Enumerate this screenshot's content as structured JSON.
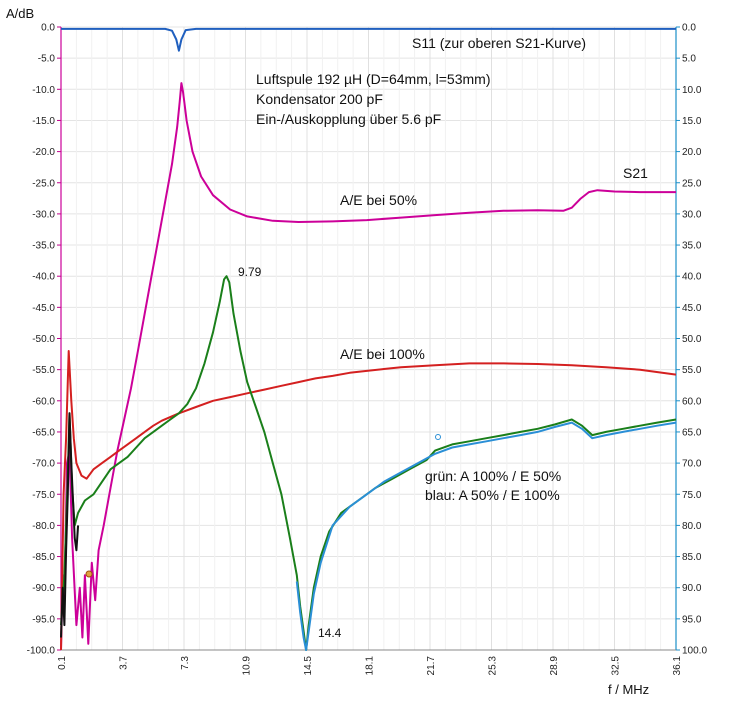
{
  "chart_data": {
    "type": "line",
    "ylabel": "A/dB",
    "xlabel": "f / MHz",
    "xlim": [
      0.1,
      36.1
    ],
    "ylim": [
      -100,
      0
    ],
    "grid": true,
    "x_ticks": [
      "0.1",
      "3.7",
      "7.3",
      "10.9",
      "14.5",
      "18.1",
      "21.7",
      "25.3",
      "28.9",
      "32.5",
      "36.1"
    ],
    "y_ticks_left": [
      "0.0",
      "-5.0",
      "-10.0",
      "-15.0",
      "-20.0",
      "-25.0",
      "-30.0",
      "-35.0",
      "-40.0",
      "-45.0",
      "-50.0",
      "-55.0",
      "-60.0",
      "-65.0",
      "-70.0",
      "-75.0",
      "-80.0",
      "-85.0",
      "-90.0",
      "-95.0",
      "-100.0"
    ],
    "y_ticks_right": [
      "0.0",
      "5.0",
      "10.0",
      "15.0",
      "20.0",
      "25.0",
      "30.0",
      "35.0",
      "40.0",
      "45.0",
      "50.0",
      "55.0",
      "60.0",
      "65.0",
      "70.0",
      "75.0",
      "80.0",
      "85.0",
      "90.0",
      "95.0",
      "100.0"
    ],
    "annotations": {
      "s11": "S11 (zur oberen S21-Kurve)",
      "coil_line1": "Luftspule 192 µH (D=64mm, l=53mm)",
      "coil_line2": "Kondensator 200 pF",
      "coil_line3": "Ein-/Auskopplung über 5.6 pF",
      "s21": "S21",
      "ae50": "A/E bei 50%",
      "ae100": "A/E bei 100%",
      "peak": "9.79",
      "notch": "14.4",
      "legend_green": "grün: A 100% / E 50%",
      "legend_blue": "blau: A 50% / E 100%"
    },
    "series": [
      {
        "color": "#1f5fbf",
        "points": [
          [
            0.1,
            -0.3
          ],
          [
            6.2,
            -0.3
          ],
          [
            6.6,
            -0.6
          ],
          [
            6.85,
            -2.0
          ],
          [
            7.0,
            -3.8
          ],
          [
            7.15,
            -2.0
          ],
          [
            7.4,
            -0.5
          ],
          [
            8.0,
            -0.3
          ],
          [
            36.1,
            -0.3
          ]
        ]
      },
      {
        "color": "#cc0099",
        "points": [
          [
            0.1,
            -100
          ],
          [
            0.2,
            -88
          ],
          [
            0.3,
            -92
          ],
          [
            0.45,
            -70
          ],
          [
            0.6,
            -68
          ],
          [
            0.75,
            -82
          ],
          [
            1.0,
            -96
          ],
          [
            1.2,
            -90
          ],
          [
            1.35,
            -98
          ],
          [
            1.5,
            -88
          ],
          [
            1.7,
            -99
          ],
          [
            1.9,
            -86
          ],
          [
            2.1,
            -92
          ],
          [
            2.3,
            -84
          ],
          [
            2.6,
            -80
          ],
          [
            3.0,
            -74
          ],
          [
            3.4,
            -68
          ],
          [
            3.8,
            -63
          ],
          [
            4.2,
            -58
          ],
          [
            4.6,
            -52
          ],
          [
            5.0,
            -46
          ],
          [
            5.4,
            -40
          ],
          [
            5.8,
            -34
          ],
          [
            6.2,
            -28
          ],
          [
            6.6,
            -22
          ],
          [
            6.9,
            -16
          ],
          [
            7.05,
            -12
          ],
          [
            7.15,
            -9.0
          ],
          [
            7.25,
            -10.5
          ],
          [
            7.45,
            -15
          ],
          [
            7.8,
            -20
          ],
          [
            8.3,
            -24
          ],
          [
            9.0,
            -27
          ],
          [
            10.0,
            -29.3
          ],
          [
            11.0,
            -30.4
          ],
          [
            12.5,
            -31.1
          ],
          [
            14.0,
            -31.3
          ],
          [
            16.0,
            -31.2
          ],
          [
            18.0,
            -31.0
          ],
          [
            20.0,
            -30.6
          ],
          [
            22.0,
            -30.2
          ],
          [
            24.0,
            -29.8
          ],
          [
            26.0,
            -29.5
          ],
          [
            28.0,
            -29.4
          ],
          [
            29.5,
            -29.5
          ],
          [
            30.0,
            -29.0
          ],
          [
            30.5,
            -27.6
          ],
          [
            31.0,
            -26.5
          ],
          [
            31.5,
            -26.2
          ],
          [
            32.5,
            -26.4
          ],
          [
            34.0,
            -26.5
          ],
          [
            36.1,
            -26.5
          ]
        ]
      },
      {
        "color": "#d42020",
        "points": [
          [
            0.1,
            -100
          ],
          [
            0.25,
            -75
          ],
          [
            0.4,
            -66
          ],
          [
            0.55,
            -52
          ],
          [
            0.7,
            -60
          ],
          [
            0.85,
            -66
          ],
          [
            1.0,
            -70
          ],
          [
            1.3,
            -72
          ],
          [
            1.6,
            -72.5
          ],
          [
            2.0,
            -71
          ],
          [
            2.5,
            -70
          ],
          [
            3.0,
            -69
          ],
          [
            3.5,
            -68
          ],
          [
            4.0,
            -67
          ],
          [
            4.5,
            -66
          ],
          [
            5.0,
            -65
          ],
          [
            5.5,
            -64
          ],
          [
            6.0,
            -63.2
          ],
          [
            7.0,
            -62
          ],
          [
            8.0,
            -61
          ],
          [
            9.0,
            -60
          ],
          [
            10.0,
            -59.4
          ],
          [
            11.0,
            -58.8
          ],
          [
            12.0,
            -58.2
          ],
          [
            13.0,
            -57.6
          ],
          [
            14.0,
            -57.0
          ],
          [
            15.0,
            -56.4
          ],
          [
            16.0,
            -56.0
          ],
          [
            17.0,
            -55.5
          ],
          [
            18.0,
            -55.2
          ],
          [
            19.0,
            -54.9
          ],
          [
            20.0,
            -54.6
          ],
          [
            22.0,
            -54.3
          ],
          [
            24.0,
            -54.0
          ],
          [
            26.0,
            -54.0
          ],
          [
            28.0,
            -54.1
          ],
          [
            30.0,
            -54.3
          ],
          [
            32.0,
            -54.6
          ],
          [
            34.0,
            -55.0
          ],
          [
            36.1,
            -55.8
          ]
        ]
      },
      {
        "color": "#1a7f1a",
        "points": [
          [
            0.1,
            -96
          ],
          [
            0.3,
            -88
          ],
          [
            0.5,
            -72
          ],
          [
            0.6,
            -62
          ],
          [
            0.75,
            -74
          ],
          [
            0.9,
            -80
          ],
          [
            1.1,
            -78
          ],
          [
            1.5,
            -76
          ],
          [
            2.0,
            -75
          ],
          [
            2.5,
            -73
          ],
          [
            3.0,
            -71
          ],
          [
            3.5,
            -70
          ],
          [
            4.0,
            -69
          ],
          [
            4.5,
            -67.5
          ],
          [
            5.0,
            -66
          ],
          [
            5.5,
            -65
          ],
          [
            6.0,
            -64
          ],
          [
            6.5,
            -63
          ],
          [
            7.0,
            -62
          ],
          [
            7.5,
            -60.5
          ],
          [
            8.0,
            -58
          ],
          [
            8.5,
            -54
          ],
          [
            9.0,
            -49
          ],
          [
            9.4,
            -44
          ],
          [
            9.65,
            -40.5
          ],
          [
            9.79,
            -40
          ],
          [
            9.95,
            -41
          ],
          [
            10.2,
            -46
          ],
          [
            10.6,
            -52
          ],
          [
            11.0,
            -57
          ],
          [
            11.5,
            -61
          ],
          [
            12.0,
            -65
          ],
          [
            12.5,
            -70
          ],
          [
            13.0,
            -75
          ],
          [
            13.5,
            -82
          ],
          [
            13.9,
            -88
          ],
          [
            14.1,
            -93
          ],
          [
            14.3,
            -97
          ],
          [
            14.45,
            -100
          ],
          [
            14.6,
            -96
          ],
          [
            14.9,
            -90
          ],
          [
            15.3,
            -85
          ],
          [
            15.8,
            -81
          ],
          [
            16.5,
            -78
          ],
          [
            17.5,
            -76
          ],
          [
            18.5,
            -74
          ],
          [
            19.5,
            -72.5
          ],
          [
            20.5,
            -71
          ],
          [
            21.5,
            -69.5
          ],
          [
            22.0,
            -68
          ],
          [
            23.0,
            -67
          ],
          [
            24.0,
            -66.5
          ],
          [
            25.0,
            -66
          ],
          [
            26.0,
            -65.5
          ],
          [
            27.0,
            -65
          ],
          [
            28.0,
            -64.5
          ],
          [
            29.0,
            -63.8
          ],
          [
            30.0,
            -63
          ],
          [
            30.6,
            -64
          ],
          [
            31.2,
            -65.5
          ],
          [
            32.0,
            -65
          ],
          [
            33.0,
            -64.5
          ],
          [
            34.0,
            -64
          ],
          [
            35.0,
            -63.5
          ],
          [
            36.1,
            -63
          ]
        ]
      },
      {
        "color": "#2a8fd6",
        "points": [
          [
            13.9,
            -89
          ],
          [
            14.1,
            -94
          ],
          [
            14.3,
            -98
          ],
          [
            14.45,
            -100
          ],
          [
            14.6,
            -97
          ],
          [
            14.9,
            -91
          ],
          [
            15.3,
            -86
          ],
          [
            16.0,
            -80
          ],
          [
            17.0,
            -77
          ],
          [
            18.0,
            -75
          ],
          [
            19.0,
            -73
          ],
          [
            20.0,
            -71.5
          ],
          [
            21.0,
            -70
          ],
          [
            22.0,
            -68.5
          ],
          [
            23.0,
            -67.5
          ],
          [
            24.0,
            -67
          ],
          [
            25.0,
            -66.5
          ],
          [
            26.0,
            -66
          ],
          [
            27.0,
            -65.5
          ],
          [
            28.0,
            -65
          ],
          [
            29.0,
            -64.2
          ],
          [
            30.0,
            -63.5
          ],
          [
            30.6,
            -64.5
          ],
          [
            31.2,
            -66
          ],
          [
            32.0,
            -65.5
          ],
          [
            33.0,
            -65
          ],
          [
            34.0,
            -64.5
          ],
          [
            35.0,
            -64
          ],
          [
            36.1,
            -63.5
          ]
        ]
      },
      {
        "color": "#111111",
        "points": [
          [
            0.1,
            -98
          ],
          [
            0.2,
            -90
          ],
          [
            0.3,
            -96
          ],
          [
            0.4,
            -84
          ],
          [
            0.5,
            -75
          ],
          [
            0.55,
            -68
          ],
          [
            0.6,
            -62
          ],
          [
            0.7,
            -70
          ],
          [
            0.8,
            -76
          ],
          [
            0.9,
            -82
          ],
          [
            1.0,
            -84
          ],
          [
            1.1,
            -80
          ]
        ]
      }
    ]
  }
}
